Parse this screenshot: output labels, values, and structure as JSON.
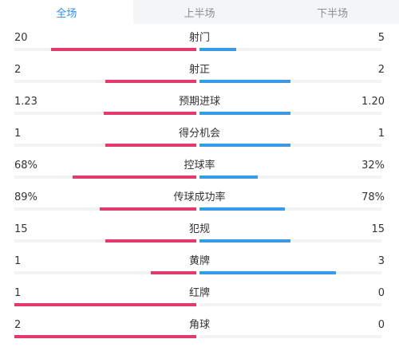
{
  "tabs": [
    {
      "label": "全场",
      "active": true
    },
    {
      "label": "上半场",
      "active": false
    },
    {
      "label": "下半场",
      "active": false
    }
  ],
  "colors": {
    "home": "#e23b6d",
    "away": "#3a9ae6",
    "track": "#f1f2f4",
    "active_tab": "#2e8ce6"
  },
  "stats": [
    {
      "label": "射门",
      "home": "20",
      "away": "5",
      "home_share": 0.8,
      "away_share": 0.2
    },
    {
      "label": "射正",
      "home": "2",
      "away": "2",
      "home_share": 0.5,
      "away_share": 0.5
    },
    {
      "label": "预期进球",
      "home": "1.23",
      "away": "1.20",
      "home_share": 0.51,
      "away_share": 0.5
    },
    {
      "label": "得分机会",
      "home": "1",
      "away": "1",
      "home_share": 0.5,
      "away_share": 0.5
    },
    {
      "label": "控球率",
      "home": "68%",
      "away": "32%",
      "home_share": 0.68,
      "away_share": 0.32
    },
    {
      "label": "传球成功率",
      "home": "89%",
      "away": "78%",
      "home_share": 0.53,
      "away_share": 0.47
    },
    {
      "label": "犯规",
      "home": "15",
      "away": "15",
      "home_share": 0.5,
      "away_share": 0.5
    },
    {
      "label": "黄牌",
      "home": "1",
      "away": "3",
      "home_share": 0.25,
      "away_share": 0.75
    },
    {
      "label": "红牌",
      "home": "1",
      "away": "0",
      "home_share": 1.0,
      "away_share": 0.0
    },
    {
      "label": "角球",
      "home": "2",
      "away": "0",
      "home_share": 1.0,
      "away_share": 0.0
    }
  ]
}
